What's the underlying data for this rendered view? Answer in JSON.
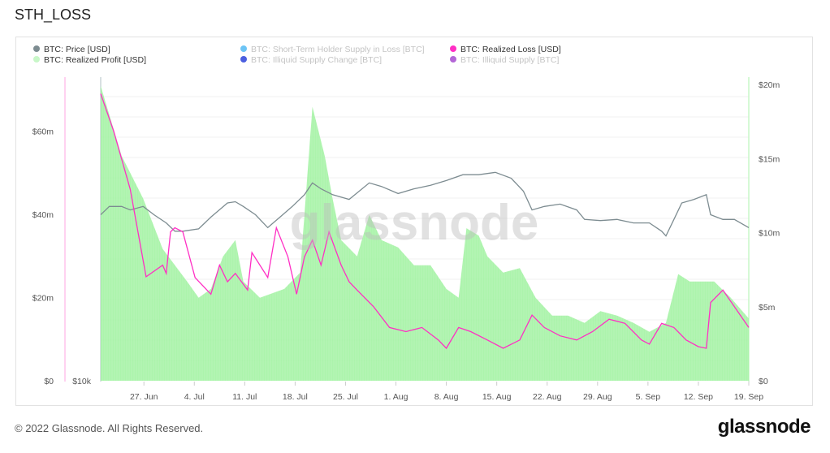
{
  "title": "STH_LOSS",
  "footer": "© 2022 Glassnode. All Rights Reserved.",
  "logo": "glassnode",
  "chart_data": {
    "type": "line",
    "title": "STH_LOSS",
    "watermark": "glassnode",
    "x_origin": "21 Jun",
    "xlim": [
      0,
      90
    ],
    "x_ticks": [
      {
        "day": 6,
        "label": "27. Jun"
      },
      {
        "day": 13,
        "label": "4. Jul"
      },
      {
        "day": 20,
        "label": "11. Jul"
      },
      {
        "day": 27,
        "label": "18. Jul"
      },
      {
        "day": 34,
        "label": "25. Jul"
      },
      {
        "day": 41,
        "label": "1. Aug"
      },
      {
        "day": 48,
        "label": "8. Aug"
      },
      {
        "day": 55,
        "label": "15. Aug"
      },
      {
        "day": 62,
        "label": "22. Aug"
      },
      {
        "day": 69,
        "label": "29. Aug"
      },
      {
        "day": 76,
        "label": "5. Sep"
      },
      {
        "day": 83,
        "label": "12. Sep"
      },
      {
        "day": 90,
        "label": "19. Sep"
      }
    ],
    "left_axis": {
      "ticks": [
        {
          "v": 0,
          "label": "$0"
        },
        {
          "v": 20,
          "label": "$20m"
        },
        {
          "v": 40,
          "label": "$40m"
        },
        {
          "v": 60,
          "label": "$60m"
        }
      ],
      "ylim": [
        0,
        73
      ]
    },
    "right_axis": {
      "ticks": [
        {
          "v": 0,
          "label": "$0"
        },
        {
          "v": 5,
          "label": "$5m"
        },
        {
          "v": 10,
          "label": "$10m"
        },
        {
          "v": 15,
          "label": "$15m"
        },
        {
          "v": 20,
          "label": "$20m"
        }
      ],
      "ylim": [
        0,
        20.5
      ]
    },
    "price_axis": {
      "label": "$10k"
    },
    "legend": [
      {
        "label": "BTC: Price [USD]",
        "color": "#7d8c91",
        "active": true
      },
      {
        "label": "BTC: Short-Term Holder Supply in Loss [BTC]",
        "color": "#6cc4f5",
        "active": false
      },
      {
        "label": "BTC: Realized Loss [USD]",
        "color": "#ff2fc4",
        "active": true
      },
      {
        "label": "BTC: Realized Profit [USD]",
        "color": "#c8f7c8",
        "active": true
      },
      {
        "label": "BTC: Illiquid Supply Change [BTC]",
        "color": "#4b5fe0",
        "active": false
      },
      {
        "label": "BTC: Illiquid Supply [BTC]",
        "color": "#b366d6",
        "active": false
      }
    ],
    "series": [
      {
        "name": "BTC: Realized Profit [USD]",
        "unit": "$m",
        "axis": "right",
        "color": "#9ef29e",
        "points": [
          [
            0,
            19.9
          ],
          [
            2.9,
            15.2
          ],
          [
            5.9,
            12.3
          ],
          [
            8.6,
            8.9
          ],
          [
            12,
            6.7
          ],
          [
            13.6,
            5.6
          ],
          [
            15.3,
            6.2
          ],
          [
            17,
            8.4
          ],
          [
            18.7,
            9.5
          ],
          [
            19.8,
            6.7
          ],
          [
            22.1,
            5.6
          ],
          [
            25.5,
            6.2
          ],
          [
            27.7,
            7.3
          ],
          [
            29.4,
            18.5
          ],
          [
            31.1,
            15.2
          ],
          [
            32.2,
            12.3
          ],
          [
            33.4,
            9.5
          ],
          [
            35.6,
            8.4
          ],
          [
            37.3,
            11.2
          ],
          [
            39,
            9.5
          ],
          [
            41.3,
            9.0
          ],
          [
            43.5,
            7.8
          ],
          [
            45.8,
            7.8
          ],
          [
            48,
            6.2
          ],
          [
            49.7,
            5.6
          ],
          [
            50.8,
            10.3
          ],
          [
            52.5,
            9.8
          ],
          [
            53.7,
            8.4
          ],
          [
            55.9,
            7.3
          ],
          [
            58.2,
            7.6
          ],
          [
            60.4,
            5.6
          ],
          [
            62.7,
            4.4
          ],
          [
            64.9,
            4.4
          ],
          [
            67.2,
            3.9
          ],
          [
            69.4,
            4.7
          ],
          [
            71.7,
            4.4
          ],
          [
            74,
            3.9
          ],
          [
            76.2,
            3.3
          ],
          [
            78.5,
            3.9
          ],
          [
            80.2,
            7.2
          ],
          [
            81.8,
            6.7
          ],
          [
            85.2,
            6.7
          ],
          [
            87.5,
            5.6
          ],
          [
            90,
            4.2
          ]
        ]
      },
      {
        "name": "BTC: Price [USD]",
        "unit": "k USD",
        "axis": "price",
        "color": "#7d8c91",
        "points": [
          [
            0,
            20.7
          ],
          [
            1.2,
            21.4
          ],
          [
            2.9,
            21.4
          ],
          [
            4.1,
            21.1
          ],
          [
            5.9,
            21.4
          ],
          [
            7.4,
            20.7
          ],
          [
            9.1,
            20.0
          ],
          [
            10.3,
            19.3
          ],
          [
            11.4,
            19.3
          ],
          [
            13.6,
            19.5
          ],
          [
            15.3,
            20.5
          ],
          [
            17.6,
            21.7
          ],
          [
            18.7,
            21.8
          ],
          [
            19.8,
            21.4
          ],
          [
            21.5,
            20.7
          ],
          [
            23.2,
            19.6
          ],
          [
            24.9,
            20.5
          ],
          [
            26.6,
            21.4
          ],
          [
            28.3,
            22.4
          ],
          [
            29.4,
            23.4
          ],
          [
            30.6,
            22.9
          ],
          [
            32.2,
            22.4
          ],
          [
            34.5,
            22.0
          ],
          [
            37.3,
            23.4
          ],
          [
            39,
            23.1
          ],
          [
            41.3,
            22.5
          ],
          [
            43.5,
            22.9
          ],
          [
            45.8,
            23.2
          ],
          [
            48,
            23.6
          ],
          [
            50.3,
            24.1
          ],
          [
            52.5,
            24.1
          ],
          [
            54.8,
            24.3
          ],
          [
            57,
            23.8
          ],
          [
            58.7,
            22.7
          ],
          [
            59.9,
            21.1
          ],
          [
            61.6,
            21.4
          ],
          [
            63.8,
            21.6
          ],
          [
            66.1,
            21.1
          ],
          [
            67.2,
            20.3
          ],
          [
            69.4,
            20.2
          ],
          [
            71.7,
            20.3
          ],
          [
            74,
            20.0
          ],
          [
            76.2,
            20.0
          ],
          [
            77.9,
            19.3
          ],
          [
            78.5,
            18.9
          ],
          [
            79.6,
            20.3
          ],
          [
            80.7,
            21.7
          ],
          [
            82.4,
            22.0
          ],
          [
            84.1,
            22.4
          ],
          [
            84.7,
            20.7
          ],
          [
            86.4,
            20.3
          ],
          [
            88,
            20.3
          ],
          [
            90,
            19.6
          ]
        ]
      },
      {
        "name": "BTC: Realized Loss [USD]",
        "unit": "$m",
        "axis": "left",
        "color": "#ff2fc4",
        "points": [
          [
            0,
            69
          ],
          [
            1.8,
            60
          ],
          [
            4.1,
            46
          ],
          [
            6.3,
            25
          ],
          [
            8.6,
            27.8
          ],
          [
            9.1,
            25.8
          ],
          [
            9.7,
            35.8
          ],
          [
            10.3,
            36.8
          ],
          [
            11.4,
            35.8
          ],
          [
            13.1,
            24.8
          ],
          [
            15.3,
            20.8
          ],
          [
            16.5,
            27.8
          ],
          [
            17.6,
            23.8
          ],
          [
            18.7,
            25.8
          ],
          [
            20.4,
            21.8
          ],
          [
            21,
            30.8
          ],
          [
            23.2,
            24.8
          ],
          [
            24.4,
            36.8
          ],
          [
            26,
            29.8
          ],
          [
            27.2,
            20.8
          ],
          [
            28.3,
            29.8
          ],
          [
            29.4,
            33.8
          ],
          [
            30.6,
            27.8
          ],
          [
            31.7,
            35.8
          ],
          [
            33.4,
            27.8
          ],
          [
            34.5,
            23.8
          ],
          [
            35.6,
            21.8
          ],
          [
            37.9,
            17.8
          ],
          [
            40.1,
            12.8
          ],
          [
            42.4,
            11.8
          ],
          [
            44.6,
            12.8
          ],
          [
            46.9,
            9.8
          ],
          [
            48,
            7.8
          ],
          [
            49.7,
            12.8
          ],
          [
            51.4,
            11.8
          ],
          [
            53.7,
            9.8
          ],
          [
            55.9,
            7.8
          ],
          [
            58.2,
            9.8
          ],
          [
            59.9,
            15.8
          ],
          [
            61.6,
            12.8
          ],
          [
            63.8,
            10.8
          ],
          [
            66.1,
            9.8
          ],
          [
            68.3,
            11.8
          ],
          [
            70.6,
            14.8
          ],
          [
            72.8,
            13.8
          ],
          [
            75.1,
            9.8
          ],
          [
            76.2,
            8.8
          ],
          [
            77.9,
            13.8
          ],
          [
            79.6,
            12.8
          ],
          [
            81.3,
            9.8
          ],
          [
            83,
            8.2
          ],
          [
            84.1,
            7.8
          ],
          [
            84.7,
            18.8
          ],
          [
            86.4,
            21.8
          ],
          [
            88,
            17.8
          ],
          [
            90,
            12.8
          ]
        ]
      }
    ]
  }
}
